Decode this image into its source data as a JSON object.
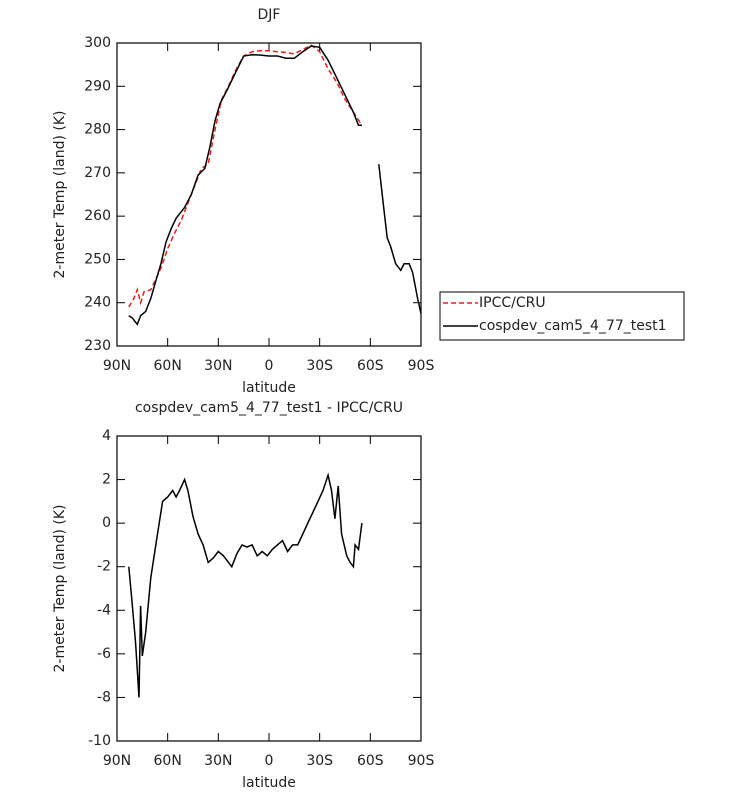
{
  "chart_data": [
    {
      "type": "line",
      "title": "DJF",
      "xlabel": "latitude",
      "ylabel": "2-meter Temp (land) (K)",
      "xlim": [
        90,
        -90
      ],
      "xticks": [
        {
          "value": 90,
          "label": "90N"
        },
        {
          "value": 60,
          "label": "60N"
        },
        {
          "value": 30,
          "label": "30N"
        },
        0,
        {
          "value": -30,
          "label": "30S"
        },
        {
          "value": -60,
          "label": "60S"
        },
        {
          "value": -90,
          "label": "90S"
        }
      ],
      "ylim": [
        230,
        300
      ],
      "yticks": [
        230,
        240,
        250,
        260,
        270,
        280,
        290,
        300
      ],
      "legend": "right",
      "series": [
        {
          "name": "IPCC/CRU",
          "color": "#e8201c",
          "dash": true,
          "x": [
            83,
            80,
            78,
            76,
            74,
            70,
            67,
            64,
            60,
            56,
            52,
            48,
            44,
            40,
            36,
            32,
            28,
            24,
            20,
            15,
            10,
            5,
            0,
            -5,
            -10,
            -15,
            -20,
            -25,
            -30,
            -35,
            -40,
            -45,
            -50,
            -55
          ],
          "values": [
            239,
            241,
            243,
            240,
            242.5,
            243,
            245.5,
            248,
            252.5,
            256,
            259,
            263,
            267,
            271,
            272,
            280,
            287,
            290,
            293.5,
            297,
            298,
            298.2,
            298.2,
            298,
            297.8,
            297.5,
            298.5,
            299.5,
            298,
            294,
            291,
            287,
            284,
            281
          ]
        },
        {
          "name": "cospdev_cam5_4_77_test1",
          "color": "#000000",
          "dash": false,
          "x": [
            83,
            81,
            78,
            76,
            73,
            70,
            67,
            64,
            61,
            58,
            55,
            50,
            46,
            42,
            38,
            35,
            32,
            29,
            25,
            20,
            15,
            10,
            5,
            0,
            -5,
            -10,
            -15,
            -20,
            -25,
            -30,
            -35,
            -40,
            -45,
            -50,
            -53,
            -55,
            -60,
            -65,
            -67,
            -70,
            -72,
            -75,
            -78,
            -80,
            -83,
            -85,
            -88,
            -90
          ],
          "values": [
            237,
            236.5,
            235,
            237,
            238,
            241,
            245,
            249,
            254,
            257,
            259.5,
            262,
            265,
            269.5,
            271,
            276,
            282,
            286,
            289,
            293,
            297,
            297.3,
            297.2,
            297,
            297,
            296.5,
            296.5,
            298,
            299.3,
            299,
            296,
            292,
            288,
            284,
            281,
            281,
            null,
            272,
            265,
            255,
            253,
            249,
            247.5,
            249,
            249,
            247,
            241,
            237.5
          ]
        }
      ]
    },
    {
      "type": "line",
      "title": "cospdev_cam5_4_77_test1 - IPCC/CRU",
      "xlabel": "latitude",
      "ylabel": "2-meter Temp (land) (K)",
      "xlim": [
        90,
        -90
      ],
      "xticks": [
        {
          "value": 90,
          "label": "90N"
        },
        {
          "value": 60,
          "label": "60N"
        },
        {
          "value": 30,
          "label": "30N"
        },
        0,
        {
          "value": -30,
          "label": "30S"
        },
        {
          "value": -60,
          "label": "60S"
        },
        {
          "value": -90,
          "label": "90S"
        }
      ],
      "ylim": [
        -10,
        4
      ],
      "yticks": [
        -10,
        -8,
        -6,
        -4,
        -2,
        0,
        2,
        4
      ],
      "color": "#000000",
      "x": [
        83,
        81,
        79,
        77,
        76,
        75,
        73,
        70,
        66,
        63,
        60,
        57,
        55,
        53,
        50,
        48,
        45,
        42,
        39,
        36,
        33,
        30,
        27,
        24,
        22,
        19,
        16,
        13,
        10,
        7,
        4,
        1,
        -2,
        -5,
        -8,
        -11,
        -14,
        -17,
        -20,
        -23,
        -26,
        -29,
        -32,
        -35,
        -37,
        -39,
        -41,
        -43,
        -46,
        -48,
        -50,
        -51,
        -53,
        -55
      ],
      "values": [
        -2,
        -3.7,
        -5.5,
        -8,
        -3.8,
        -6.1,
        -5,
        -2.5,
        -0.5,
        1,
        1.2,
        1.5,
        1.2,
        1.5,
        2,
        1.5,
        0.3,
        -0.5,
        -1,
        -1.8,
        -1.6,
        -1.3,
        -1.5,
        -1.8,
        -2,
        -1.4,
        -1,
        -1.1,
        -1,
        -1.5,
        -1.3,
        -1.5,
        -1.2,
        -1,
        -0.8,
        -1.3,
        -1,
        -1,
        -0.5,
        0,
        0.5,
        1,
        1.5,
        2.2,
        1.5,
        0.2,
        1.7,
        -0.5,
        -1.5,
        -1.8,
        -2,
        -1,
        -1.2,
        0
      ]
    }
  ]
}
